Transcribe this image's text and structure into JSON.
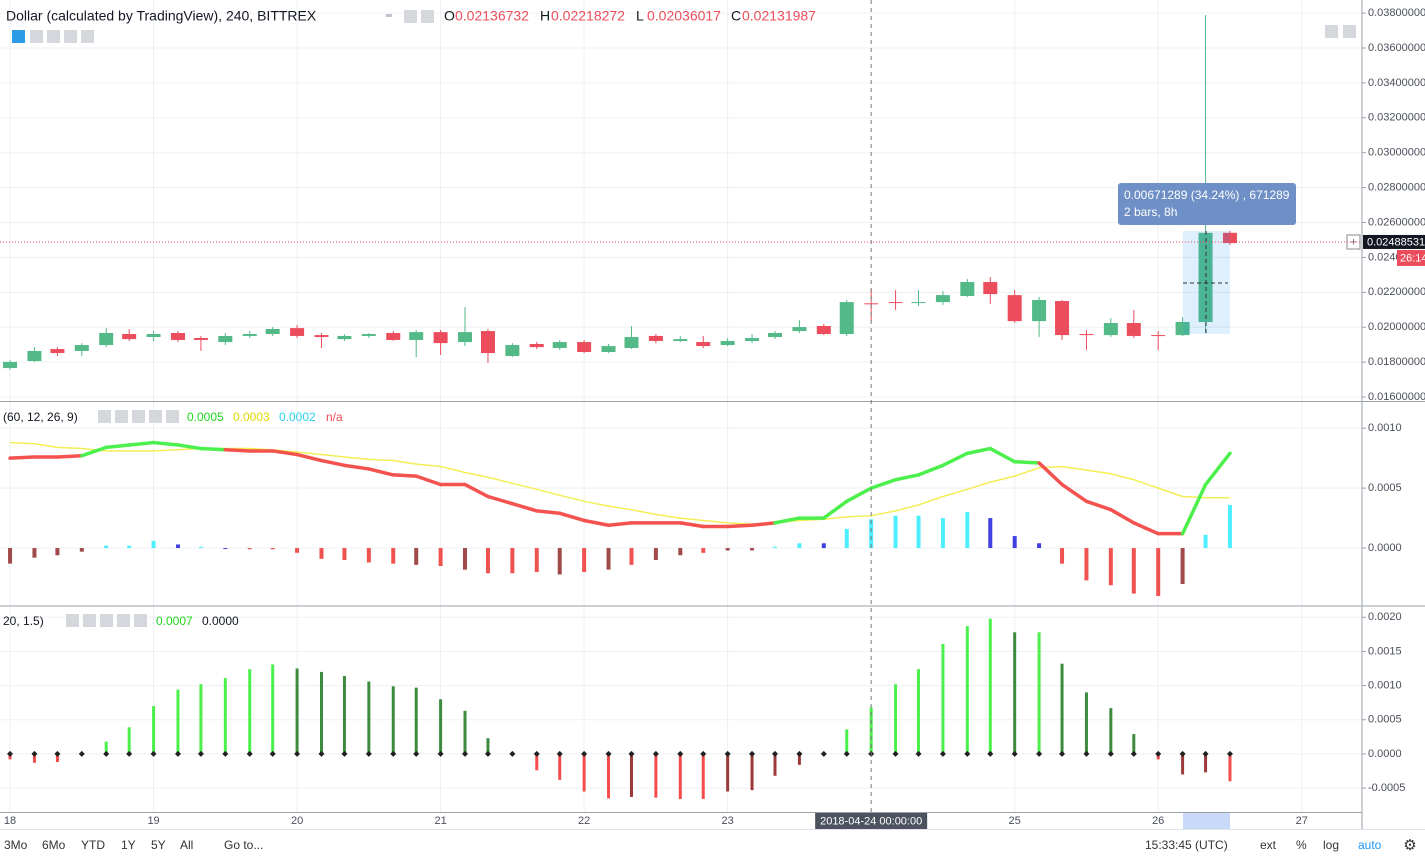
{
  "chart_data": [
    {
      "type": "candlestick",
      "title": "Dollar (calculated by TradingView), 240, BITTREX",
      "ohlc": [
        {
          "label": "O",
          "value": 0.02136732
        },
        {
          "label": "H",
          "value": 0.02218272
        },
        {
          "label": "L",
          "value": 0.02036017
        },
        {
          "label": "C",
          "value": 0.02131987
        }
      ],
      "x": [
        18,
        18.17,
        18.33,
        18.5,
        18.67,
        18.83,
        19,
        19.17,
        19.33,
        19.5,
        19.67,
        19.83,
        20,
        20.17,
        20.33,
        20.5,
        20.67,
        20.83,
        21,
        21.17,
        21.33,
        21.5,
        21.67,
        21.83,
        22,
        22.17,
        22.33,
        22.5,
        22.67,
        22.83,
        23,
        23.17,
        23.33,
        23.5,
        23.67,
        23.83,
        24,
        24.17,
        24.33,
        24.5,
        24.67,
        24.83,
        25,
        25.17,
        25.33,
        25.5,
        25.67,
        25.83,
        26,
        26.17,
        26.33,
        26.5
      ],
      "open": [
        0.01766,
        0.01806,
        0.01875,
        0.01864,
        0.01898,
        0.01961,
        0.01944,
        0.01967,
        0.01938,
        0.01915,
        0.0195,
        0.01961,
        0.01995,
        0.01955,
        0.01932,
        0.0195,
        0.01967,
        0.01927,
        0.01972,
        0.01915,
        0.01978,
        0.01835,
        0.01904,
        0.01881,
        0.01915,
        0.01858,
        0.01881,
        0.0195,
        0.01921,
        0.01915,
        0.01898,
        0.01921,
        0.01944,
        0.01978,
        0.02007,
        0.01961,
        0.02137,
        0.02144,
        0.02139,
        0.02144,
        0.02179,
        0.02259,
        0.02184,
        0.02035,
        0.0215,
        0.01961,
        0.01955,
        0.02024,
        0.01955,
        0.01955,
        0.0203,
        0.02541
      ],
      "high": [
        0.01812,
        0.01886,
        0.01886,
        0.01909,
        0.01995,
        0.0199,
        0.01978,
        0.01978,
        0.0195,
        0.01967,
        0.01978,
        0.02001,
        0.02013,
        0.01967,
        0.01961,
        0.01967,
        0.01978,
        0.01984,
        0.01984,
        0.02116,
        0.0199,
        0.01909,
        0.01915,
        0.01927,
        0.01927,
        0.01904,
        0.02007,
        0.01961,
        0.0195,
        0.0195,
        0.01938,
        0.01961,
        0.01978,
        0.02041,
        0.02018,
        0.02156,
        0.02218,
        0.02213,
        0.02213,
        0.02207,
        0.02276,
        0.02288,
        0.02213,
        0.02173,
        0.02156,
        0.01984,
        0.02053,
        0.02099,
        0.01978,
        0.02058,
        0.03789,
        0.02553
      ],
      "low": [
        0.01755,
        0.01801,
        0.01835,
        0.01835,
        0.01886,
        0.01921,
        0.01921,
        0.01915,
        0.01864,
        0.01898,
        0.01938,
        0.0195,
        0.01938,
        0.01881,
        0.01921,
        0.01938,
        0.01921,
        0.01829,
        0.01841,
        0.01892,
        0.01795,
        0.01829,
        0.01875,
        0.01869,
        0.01852,
        0.01852,
        0.01875,
        0.01909,
        0.01915,
        0.01881,
        0.01892,
        0.01909,
        0.01932,
        0.01967,
        0.01955,
        0.0195,
        0.02036,
        0.02099,
        0.02121,
        0.02127,
        0.02173,
        0.02133,
        0.02024,
        0.01944,
        0.01927,
        0.01869,
        0.01944,
        0.01938,
        0.01869,
        0.0195,
        0.01967,
        0.02471
      ],
      "close": [
        0.01801,
        0.01864,
        0.01852,
        0.01898,
        0.01967,
        0.01932,
        0.01961,
        0.01927,
        0.01927,
        0.0195,
        0.01961,
        0.0199,
        0.0195,
        0.01944,
        0.0195,
        0.01961,
        0.01927,
        0.01972,
        0.01909,
        0.01972,
        0.01852,
        0.01898,
        0.01886,
        0.01915,
        0.01858,
        0.01892,
        0.01944,
        0.01921,
        0.01932,
        0.01892,
        0.01921,
        0.01938,
        0.01967,
        0.02001,
        0.01961,
        0.02144,
        0.02132,
        0.02139,
        0.02144,
        0.02184,
        0.02259,
        0.0219,
        0.02035,
        0.02156,
        0.01955,
        0.01955,
        0.02024,
        0.0195,
        0.0195,
        0.0203,
        0.02541,
        0.02482
      ],
      "up_color": "#53b987",
      "down_color": "#eb4d5c",
      "xlim": [
        17.93,
        27.42
      ],
      "ylim": [
        0.01583,
        0.03875
      ],
      "yticks": [
        {
          "value": 0.016,
          "label": "0.01600000"
        },
        {
          "value": 0.018,
          "label": "0.01800000"
        },
        {
          "value": 0.02,
          "label": "0.02000000"
        },
        {
          "value": 0.022,
          "label": "0.02200000"
        },
        {
          "value": 0.024,
          "label": "0.02400000"
        },
        {
          "value": 0.026,
          "label": "0.02600000"
        },
        {
          "value": 0.028,
          "label": "0.02800000"
        },
        {
          "value": 0.03,
          "label": "0.03000000"
        },
        {
          "value": 0.032,
          "label": "0.03200000"
        },
        {
          "value": 0.034,
          "label": "0.03400000"
        },
        {
          "value": 0.036,
          "label": "0.03600000"
        },
        {
          "value": 0.038,
          "label": "0.03800000"
        }
      ],
      "grid": true,
      "last_price": 0.02488531,
      "countdown": "26:14",
      "measurement": {
        "label": "0.00671289 (34.24%) , 671289",
        "duration": "2 bars, 8h"
      }
    },
    {
      "type": "combo",
      "legend": {
        "params": "(60, 12, 26, 9)",
        "values": [
          {
            "text": "0.0005",
            "color": "#1ed81e"
          },
          {
            "text": "0.0003",
            "color": "#e0d800"
          },
          {
            "text": "0.0002",
            "color": "#2bd2ef"
          },
          {
            "text": "n/a",
            "color": "#ef4b52"
          }
        ]
      },
      "x": [
        18,
        18.17,
        18.33,
        18.5,
        18.67,
        18.83,
        19,
        19.17,
        19.33,
        19.5,
        19.67,
        19.83,
        20,
        20.17,
        20.33,
        20.5,
        20.67,
        20.83,
        21,
        21.17,
        21.33,
        21.5,
        21.67,
        21.83,
        22,
        22.17,
        22.33,
        22.5,
        22.67,
        22.83,
        23,
        23.17,
        23.33,
        23.5,
        23.67,
        23.83,
        24,
        24.17,
        24.33,
        24.5,
        24.67,
        24.83,
        25,
        25.17,
        25.33,
        25.5,
        25.67,
        25.83,
        26,
        26.17,
        26.33,
        26.5
      ],
      "series": [
        {
          "type": "bar",
          "values": [
            -0.00013,
            -8e-05,
            -6e-05,
            -3e-05,
            2e-05,
            2e-05,
            6e-05,
            3e-05,
            1e-05,
            0,
            -1e-05,
            -1e-05,
            -4e-05,
            -9e-05,
            -0.0001,
            -0.00012,
            -0.00013,
            -0.00014,
            -0.00015,
            -0.00018,
            -0.00021,
            -0.00021,
            -0.0002,
            -0.00022,
            -0.0002,
            -0.00018,
            -0.00014,
            -0.0001,
            -6e-05,
            -4e-05,
            -2e-05,
            -2e-05,
            1e-05,
            4e-05,
            4e-05,
            0.00016,
            0.00024,
            0.00027,
            0.00027,
            0.00025,
            0.0003,
            0.00025,
            0.0001,
            4e-05,
            -0.00013,
            -0.00027,
            -0.00031,
            -0.00038,
            -0.0004,
            -0.0003,
            0.00011,
            0.00036
          ],
          "colors": [
            "#a04a4a",
            "#a04a4a",
            "#a04a4a",
            "#a04a4a",
            "#4deeff",
            "#4deeff",
            "#4deeff",
            "#4040e0",
            "#4deeff",
            "#4040e0",
            "#ef5350",
            "#ef5350",
            "#ef5350",
            "#ef5350",
            "#ef5350",
            "#ef5350",
            "#ef5350",
            "#a04a4a",
            "#ef5350",
            "#a04a4a",
            "#ef5350",
            "#ef5350",
            "#ef5350",
            "#a04a4a",
            "#ef5350",
            "#a04a4a",
            "#ef5350",
            "#a04a4a",
            "#a04a4a",
            "#ef5350",
            "#a04a4a",
            "#a04a4a",
            "#4deeff",
            "#4deeff",
            "#4040e0",
            "#4deeff",
            "#4deeff",
            "#4deeff",
            "#4deeff",
            "#4deeff",
            "#4deeff",
            "#4040e0",
            "#4040e0",
            "#4040e0",
            "#ef5350",
            "#ef5350",
            "#ef5350",
            "#ef5350",
            "#ef5350",
            "#a04a4a",
            "#4deeff",
            "#4deeff"
          ]
        },
        {
          "type": "line",
          "color": "#f4ee55",
          "width": 1.5,
          "values": [
            0.00088,
            0.00087,
            0.00084,
            0.00083,
            0.00081,
            0.00081,
            0.00081,
            0.00082,
            0.00083,
            0.00083,
            0.00083,
            0.00082,
            0.0008,
            0.00078,
            0.00076,
            0.00074,
            0.00073,
            0.0007,
            0.00068,
            0.00063,
            0.00059,
            0.00054,
            0.00049,
            0.00044,
            0.00039,
            0.00035,
            0.00032,
            0.00028,
            0.00025,
            0.00023,
            0.00021,
            0.0002,
            0.00021,
            0.00023,
            0.00024,
            0.00026,
            0.00027,
            0.00031,
            0.00036,
            0.00043,
            0.00049,
            0.00055,
            0.0006,
            0.00067,
            0.00068,
            0.00065,
            0.00062,
            0.00057,
            0.0005,
            0.00043,
            0.00042,
            0.00042
          ]
        },
        {
          "type": "line",
          "width": 3.5,
          "values": [
            0.00075,
            0.00076,
            0.00076,
            0.00077,
            0.00084,
            0.00086,
            0.00088,
            0.00086,
            0.00083,
            0.00082,
            0.00081,
            0.00081,
            0.00078,
            0.00073,
            0.00069,
            0.00066,
            0.00061,
            0.0006,
            0.00053,
            0.00053,
            0.00043,
            0.00037,
            0.00031,
            0.00029,
            0.00023,
            0.00019,
            0.00021,
            0.00021,
            0.00021,
            0.00018,
            0.00018,
            0.00019,
            0.00021,
            0.00025,
            0.00025,
            0.00039,
            0.0005,
            0.00057,
            0.00061,
            0.00069,
            0.00079,
            0.00083,
            0.00072,
            0.00071,
            0.00053,
            0.00039,
            0.00032,
            0.00021,
            0.00012,
            0.00012,
            0.00053,
            0.00079
          ],
          "colors": [
            "#f4524f",
            "#f4524f",
            "#f4524f",
            "#4cf04c",
            "#4cf04c",
            "#4cf04c",
            "#4cf04c",
            "#4cf04c",
            "#4cf04c",
            "#f4524f",
            "#f4524f",
            "#f4524f",
            "#f4524f",
            "#f4524f",
            "#f4524f",
            "#f4524f",
            "#f4524f",
            "#f4524f",
            "#f4524f",
            "#f4524f",
            "#f4524f",
            "#f4524f",
            "#f4524f",
            "#f4524f",
            "#f4524f",
            "#f4524f",
            "#f4524f",
            "#f4524f",
            "#f4524f",
            "#f4524f",
            "#f4524f",
            "#f4524f",
            "#4cf04c",
            "#4cf04c",
            "#4cf04c",
            "#4cf04c",
            "#4cf04c",
            "#4cf04c",
            "#4cf04c",
            "#4cf04c",
            "#4cf04c",
            "#4cf04c",
            "#4cf04c",
            "#f4524f",
            "#f4524f",
            "#f4524f",
            "#f4524f",
            "#f4524f",
            "#f4524f",
            "#4cf04c",
            "#4cf04c",
            "#4cf04c"
          ]
        }
      ],
      "xlim": [
        17.93,
        27.42
      ],
      "ylim": [
        -0.000475,
        0.00121
      ],
      "yticks": [
        {
          "value": 0.001,
          "label": "0.0010"
        },
        {
          "value": 0.0005,
          "label": "0.0005"
        },
        {
          "value": 0,
          "label": "0.0000"
        }
      ],
      "grid": true
    },
    {
      "type": "bar",
      "legend": {
        "params": "20, 1.5)",
        "values": [
          {
            "text": "0.0007",
            "color": "#1ed81e"
          },
          {
            "text": "0.0000",
            "color": "#131722"
          }
        ]
      },
      "x": [
        18,
        18.17,
        18.33,
        18.5,
        18.67,
        18.83,
        19,
        19.17,
        19.33,
        19.5,
        19.67,
        19.83,
        20,
        20.17,
        20.33,
        20.5,
        20.67,
        20.83,
        21,
        21.17,
        21.33,
        21.5,
        21.67,
        21.83,
        22,
        22.17,
        22.33,
        22.5,
        22.67,
        22.83,
        23,
        23.17,
        23.33,
        23.5,
        23.67,
        23.83,
        24,
        24.17,
        24.33,
        24.5,
        24.67,
        24.83,
        25,
        25.17,
        25.33,
        25.5,
        25.67,
        25.83,
        26,
        26.17,
        26.33,
        26.5
      ],
      "values": [
        -8e-05,
        -0.00013,
        -0.00012,
        0,
        0.00018,
        0.00039,
        0.0007,
        0.00094,
        0.00102,
        0.00111,
        0.00124,
        0.00131,
        0.00125,
        0.0012,
        0.00114,
        0.00106,
        0.00099,
        0.00097,
        0.0008,
        0.00063,
        0.00023,
        0,
        -0.00024,
        -0.00038,
        -0.00055,
        -0.00065,
        -0.00063,
        -0.00064,
        -0.00066,
        -0.00066,
        -0.00055,
        -0.00053,
        -0.00032,
        -0.00016,
        0,
        0.00036,
        0.00068,
        0.00102,
        0.00124,
        0.00161,
        0.00187,
        0.00198,
        0.00178,
        0.00178,
        0.00132,
        0.0009,
        0.00067,
        0.00029,
        -8e-05,
        -0.0003,
        -0.00027,
        -0.0004
      ],
      "colors": [
        "#f44c4c",
        "#f44c4c",
        "#f44c4c",
        "#3d8c3d",
        "#4cf04c",
        "#4cf04c",
        "#4cf04c",
        "#4cf04c",
        "#4cf04c",
        "#4cf04c",
        "#4cf04c",
        "#4cf04c",
        "#3d8c3d",
        "#3d8c3d",
        "#3d8c3d",
        "#3d8c3d",
        "#3d8c3d",
        "#3d8c3d",
        "#3d8c3d",
        "#3d8c3d",
        "#3d8c3d",
        "#f44c4c",
        "#f44c4c",
        "#f44c4c",
        "#f44c4c",
        "#f44c4c",
        "#9c3a3a",
        "#f44c4c",
        "#f44c4c",
        "#f44c4c",
        "#9c3a3a",
        "#9c3a3a",
        "#9c3a3a",
        "#9c3a3a",
        "#9c3a3a",
        "#4cf04c",
        "#4cf04c",
        "#4cf04c",
        "#4cf04c",
        "#4cf04c",
        "#4cf04c",
        "#4cf04c",
        "#3d8c3d",
        "#4cf04c",
        "#3d8c3d",
        "#3d8c3d",
        "#3d8c3d",
        "#3d8c3d",
        "#f44c4c",
        "#9c3a3a",
        "#9c3a3a",
        "#f44c4c"
      ],
      "xlim": [
        17.93,
        27.42
      ],
      "ylim": [
        -0.00085,
        0.00215
      ],
      "yticks": [
        {
          "value": 0.002,
          "label": "0.0020"
        },
        {
          "value": 0.0015,
          "label": "0.0015"
        },
        {
          "value": 0.001,
          "label": "0.0010"
        },
        {
          "value": 0.0005,
          "label": "0.0005"
        },
        {
          "value": 0,
          "label": "0.0000"
        },
        {
          "value": -0.0005,
          "label": "-0.0005"
        }
      ],
      "xticks": [
        18,
        19,
        20,
        21,
        22,
        23,
        25,
        26,
        27
      ],
      "crosshair": {
        "value": 24,
        "label": "2018-04-24 00:00:00"
      },
      "grid": true
    }
  ],
  "toolbar": {
    "ranges": [
      "3Mo",
      "6Mo",
      "YTD",
      "1Y",
      "5Y",
      "All"
    ],
    "goto": "Go to...",
    "clock": "15:33:45 (UTC)",
    "options": [
      "ext",
      "%",
      "log",
      "auto"
    ]
  }
}
